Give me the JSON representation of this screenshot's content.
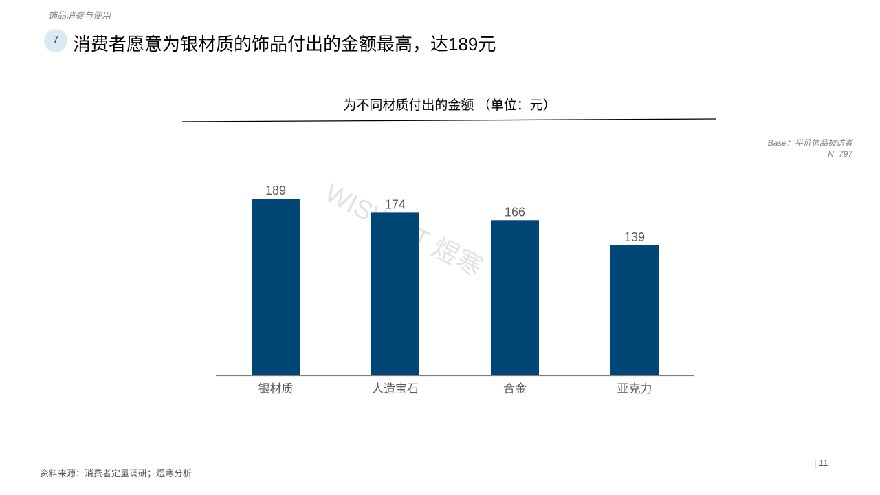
{
  "section_label": "饰品消费与使用",
  "badge": "7",
  "headline": "消费者愿意为银材质的饰品付出的金额最高，达189元",
  "base_note": {
    "line1": "Base：平价饰品被访者",
    "line2": "N=797"
  },
  "watermark": "WISWIFT 煜寒",
  "footer": {
    "source": "资料来源：消费者定量调研；煜寒分析",
    "page": "| 11"
  },
  "colors": {
    "bar": "#004776",
    "axis": "#7f7f7f",
    "label": "#595959"
  },
  "chart_data": {
    "type": "bar",
    "title": "为不同材质付出的金额 （单位：元）",
    "categories": [
      "银材质",
      "人造宝石",
      "合金",
      "亚克力"
    ],
    "values": [
      189,
      174,
      166,
      139
    ],
    "xlabel": "",
    "ylabel": "",
    "ylim": [
      0,
      189
    ],
    "grid": false,
    "data_labels": true
  }
}
